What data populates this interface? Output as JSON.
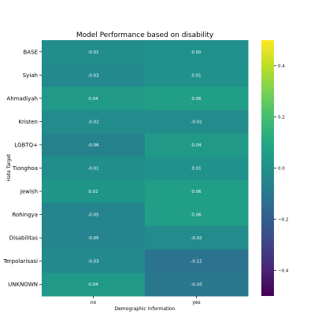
{
  "chart_data": {
    "type": "heatmap",
    "title": "Model Performance based on disability",
    "xlabel": "Demographic Information",
    "ylabel": "Hate Target",
    "columns": [
      "no",
      "yes"
    ],
    "rows": [
      "BASE",
      "Syiah",
      "Ahmadiyah",
      "Kristen",
      "LGBTQ+",
      "Tionghoa",
      "Jewish",
      "Rohingya",
      "Disabilitas",
      "Terpolarisasi",
      "UNKNOWN"
    ],
    "values": [
      [
        -0.01,
        0.0
      ],
      [
        -0.03,
        0.01
      ],
      [
        0.04,
        0.06
      ],
      [
        -0.02,
        -0.02
      ],
      [
        -0.06,
        0.04
      ],
      [
        -0.01,
        0.01
      ],
      [
        0.02,
        0.06
      ],
      [
        -0.05,
        0.06
      ],
      [
        -0.05,
        -0.02
      ],
      [
        -0.03,
        -0.12
      ],
      [
        0.04,
        -0.1
      ]
    ],
    "value_labels": [
      [
        "-0.01",
        "0.00"
      ],
      [
        "-0.03",
        "0.01"
      ],
      [
        "0.04",
        "0.06"
      ],
      [
        "-0.02",
        "-0.02"
      ],
      [
        "-0.06",
        "0.04"
      ],
      [
        "-0.01",
        "0.01"
      ],
      [
        "0.02",
        "0.06"
      ],
      [
        "-0.05",
        "0.06"
      ],
      [
        "-0.05",
        "-0.02"
      ],
      [
        "-0.03",
        "-0.12"
      ],
      [
        "0.04",
        "-0.10"
      ]
    ],
    "colormap": "viridis",
    "vmin": -0.5,
    "vmax": 0.5,
    "colorbar_ticks": [
      0.4,
      0.2,
      0.0,
      -0.2,
      -0.4
    ],
    "colorbar_tick_labels": [
      "0.4",
      "0.2",
      "0.0",
      "−0.2",
      "−0.4"
    ]
  }
}
